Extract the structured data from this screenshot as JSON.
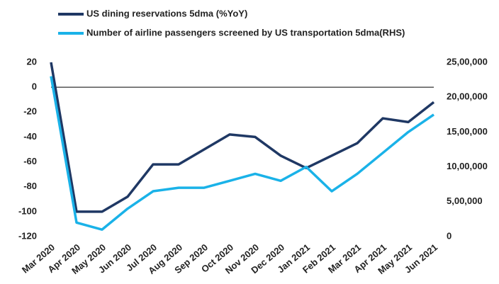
{
  "chart_data": {
    "type": "line",
    "categories": [
      "Mar 2020",
      "Apr 2020",
      "May 2020",
      "Jun 2020",
      "Jul 2020",
      "Aug 2020",
      "Sep 2020",
      "Oct 2020",
      "Nov 2020",
      "Dec 2020",
      "Jan 2021",
      "Feb 2021",
      "Mar 2021",
      "Apr 2021",
      "May 2021",
      "Jun 2021"
    ],
    "series": [
      {
        "name": "US dining reservations 5dma (%YoY)",
        "color": "#1f3864",
        "values": [
          20,
          -100,
          -100,
          -88,
          -62,
          -62,
          -50,
          -38,
          -40,
          -55,
          -65,
          -55,
          -45,
          -25,
          -28,
          -12
        ]
      },
      {
        "name": "Number of airline passengers screened by US transportation 5dma(RHS)",
        "color": "#1ab2e8",
        "axis": "y2",
        "values": [
          2300000,
          200000,
          100000,
          400000,
          650000,
          700000,
          700000,
          800000,
          900000,
          800000,
          1000000,
          650000,
          900000,
          1200000,
          1500000,
          1750000
        ]
      }
    ],
    "ylim": [
      -120,
      20
    ],
    "yticks": [
      -120,
      -100,
      -80,
      -60,
      -40,
      -20,
      0,
      20
    ],
    "y2lim": [
      0,
      2500000
    ],
    "y2ticks": [
      0,
      {
        "value": 500000,
        "label": "5,00,000"
      },
      {
        "value": 1000000,
        "label": "10,00,000"
      },
      {
        "value": 1500000,
        "label": "15,00,000"
      },
      {
        "value": 2000000,
        "label": "20,00,000"
      },
      {
        "value": 2500000,
        "label": "25,00,000"
      }
    ]
  }
}
